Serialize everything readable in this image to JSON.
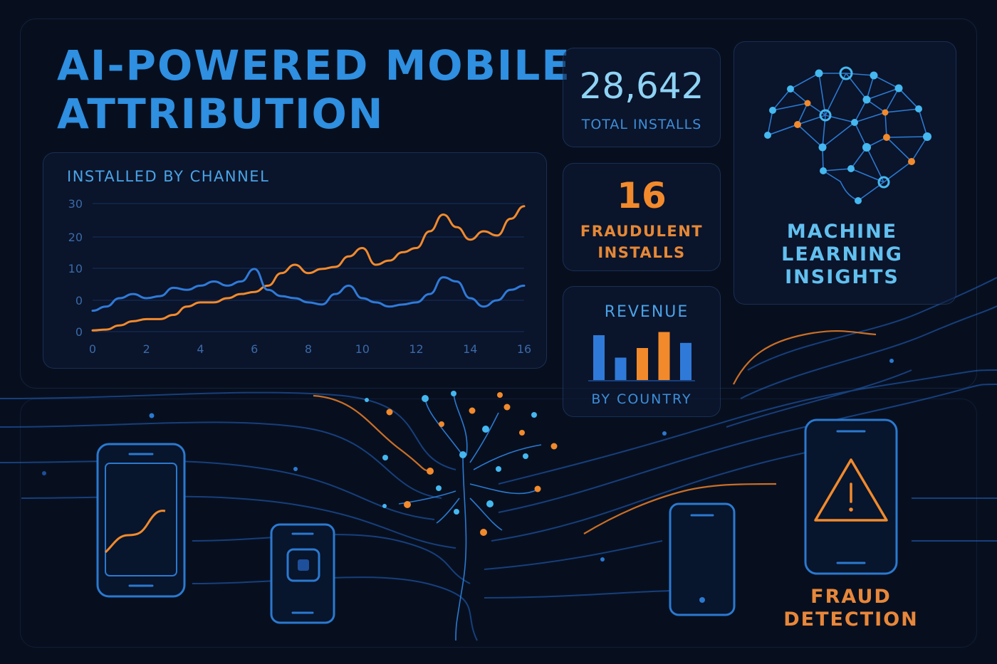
{
  "header": {
    "title_line1": "AI-POWERED MOBILE",
    "title_line2": "ATTRIBUTION"
  },
  "colors": {
    "background": "#070f1f",
    "blue_accent": "#2f8fe0",
    "light_blue": "#8fd3f4",
    "orange_accent": "#f28a2c"
  },
  "chart": {
    "title": "INSTALLED BY CHANNEL",
    "chart_data": {
      "type": "line",
      "title": "INSTALLED BY CHANNEL",
      "x_tick_labels": [
        "0",
        "2",
        "4",
        "6",
        "8",
        "10",
        "12",
        "14",
        "16"
      ],
      "y_tick_labels": [
        "0",
        "0",
        "10",
        "20",
        "30"
      ],
      "x": [
        0,
        0.5,
        1,
        1.5,
        2,
        2.5,
        3,
        3.5,
        4,
        4.5,
        5,
        5.5,
        6,
        6.5,
        7,
        7.5,
        8,
        8.5,
        9,
        9.5,
        10,
        10.5,
        11,
        11.5,
        12,
        12.5,
        13,
        13.5,
        14,
        14.5,
        15,
        15.5,
        16
      ],
      "series": [
        {
          "color": "#f28a2c",
          "values": [
            0.3,
            0.5,
            1.5,
            2.5,
            3,
            3,
            4,
            6,
            7,
            7,
            8,
            9,
            9.5,
            11,
            14,
            16,
            14,
            15,
            15.5,
            18,
            20,
            16,
            17,
            19,
            20,
            24,
            28,
            25,
            22,
            24,
            23,
            27,
            30
          ]
        },
        {
          "color": "#2f7ad8",
          "values": [
            5,
            6,
            8,
            9,
            8,
            8.5,
            10.5,
            10,
            11,
            12,
            11,
            12,
            15,
            10,
            8.5,
            8,
            7,
            6.5,
            9,
            11,
            8,
            7,
            6,
            6.5,
            7,
            9,
            13,
            12,
            8,
            6,
            7.5,
            10,
            11
          ]
        }
      ]
    }
  },
  "stats": {
    "total_installs": {
      "value": "28,642",
      "label": "TOTAL INSTALLS"
    },
    "fraudulent": {
      "value": "16",
      "label_line1": "FRAUDULENT",
      "label_line2": "INSTALLS"
    },
    "revenue": {
      "title": "REVENUE",
      "subtitle": "BY COUNTRY",
      "chart_data": {
        "type": "bar",
        "values": [
          70,
          35,
          50,
          75,
          58
        ],
        "colors": [
          "#2f7ad8",
          "#2f7ad8",
          "#f28a2c",
          "#f28a2c",
          "#2f7ad8"
        ],
        "ylim": [
          0,
          80
        ]
      }
    }
  },
  "ml": {
    "label_line1": "MACHINE",
    "label_line2": "LEARNING",
    "label_line3": "INSIGHTS",
    "icon": "brain-network-icon"
  },
  "fraud_detection": {
    "label_line1": "FRAUD",
    "label_line2": "DETECTION",
    "icon": "warning-triangle-icon"
  },
  "devices": {
    "icons": [
      "phone-chart-icon",
      "phone-app-icon",
      "phone-plain-icon",
      "phone-warning-icon"
    ]
  }
}
